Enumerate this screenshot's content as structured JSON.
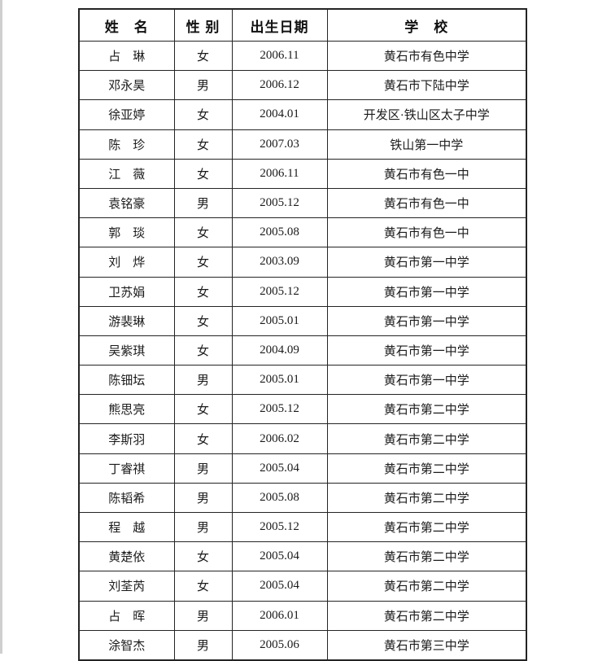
{
  "page": {
    "background": "#ffffff",
    "edge_strip_color": "#cfcfcf",
    "border_color": "#242424",
    "text_color": "#1b1b1b"
  },
  "table": {
    "headers": [
      "姓　名",
      "性 别",
      "出生日期",
      "学　校"
    ],
    "rows": [
      {
        "name": "占　琳",
        "gender": "女",
        "birth_date": "2006.11",
        "school": "黄石市有色中学"
      },
      {
        "name": "邓永昊",
        "gender": "男",
        "birth_date": "2006.12",
        "school": "黄石市下陆中学"
      },
      {
        "name": "徐亚婷",
        "gender": "女",
        "birth_date": "2004.01",
        "school": "开发区·铁山区太子中学"
      },
      {
        "name": "陈　珍",
        "gender": "女",
        "birth_date": "2007.03",
        "school": "铁山第一中学"
      },
      {
        "name": "江　薇",
        "gender": "女",
        "birth_date": "2006.11",
        "school": "黄石市有色一中"
      },
      {
        "name": "袁铭豪",
        "gender": "男",
        "birth_date": "2005.12",
        "school": "黄石市有色一中"
      },
      {
        "name": "郭　琰",
        "gender": "女",
        "birth_date": "2005.08",
        "school": "黄石市有色一中"
      },
      {
        "name": "刘　烨",
        "gender": "女",
        "birth_date": "2003.09",
        "school": "黄石市第一中学"
      },
      {
        "name": "卫苏娟",
        "gender": "女",
        "birth_date": "2005.12",
        "school": "黄石市第一中学"
      },
      {
        "name": "游裴琳",
        "gender": "女",
        "birth_date": "2005.01",
        "school": "黄石市第一中学"
      },
      {
        "name": "吴紫琪",
        "gender": "女",
        "birth_date": "2004.09",
        "school": "黄石市第一中学"
      },
      {
        "name": "陈钿坛",
        "gender": "男",
        "birth_date": "2005.01",
        "school": "黄石市第一中学"
      },
      {
        "name": "熊思亮",
        "gender": "女",
        "birth_date": "2005.12",
        "school": "黄石市第二中学"
      },
      {
        "name": "李斯羽",
        "gender": "女",
        "birth_date": "2006.02",
        "school": "黄石市第二中学"
      },
      {
        "name": "丁睿祺",
        "gender": "男",
        "birth_date": "2005.04",
        "school": "黄石市第二中学"
      },
      {
        "name": "陈韬希",
        "gender": "男",
        "birth_date": "2005.08",
        "school": "黄石市第二中学"
      },
      {
        "name": "程　越",
        "gender": "男",
        "birth_date": "2005.12",
        "school": "黄石市第二中学"
      },
      {
        "name": "黄楚依",
        "gender": "女",
        "birth_date": "2005.04",
        "school": "黄石市第二中学"
      },
      {
        "name": "刘荃芮",
        "gender": "女",
        "birth_date": "2005.04",
        "school": "黄石市第二中学"
      },
      {
        "name": "占　晖",
        "gender": "男",
        "birth_date": "2006.01",
        "school": "黄石市第二中学"
      },
      {
        "name": "涂智杰",
        "gender": "男",
        "birth_date": "2005.06",
        "school": "黄石市第三中学"
      }
    ]
  }
}
